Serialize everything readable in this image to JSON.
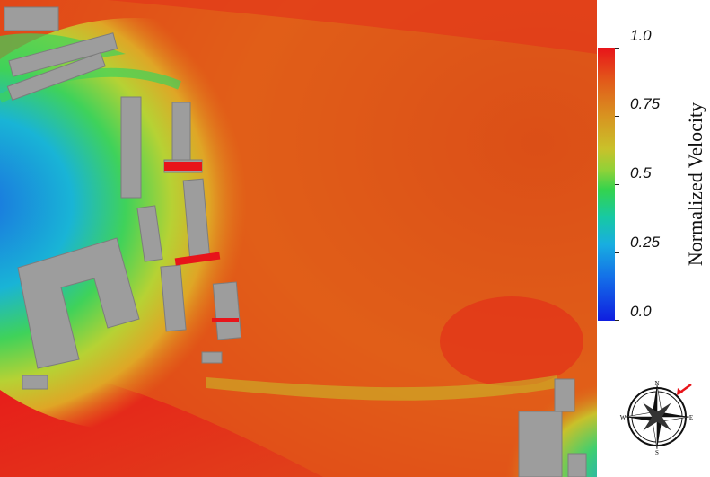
{
  "colorbar": {
    "title": "Normalized Velocity",
    "ticks": [
      "1.0",
      "0.75",
      "0.5",
      "0.25",
      "0.0"
    ]
  },
  "compass": {
    "letters": {
      "n": "N",
      "s": "S",
      "e": "E",
      "w": "W"
    },
    "arrow_color": "#e8141a"
  },
  "colors": {
    "high": "#e8141a",
    "mid_high": "#d89320",
    "mid": "#34d34d",
    "low": "#0f1ee0",
    "building": "#9d9d9d"
  }
}
